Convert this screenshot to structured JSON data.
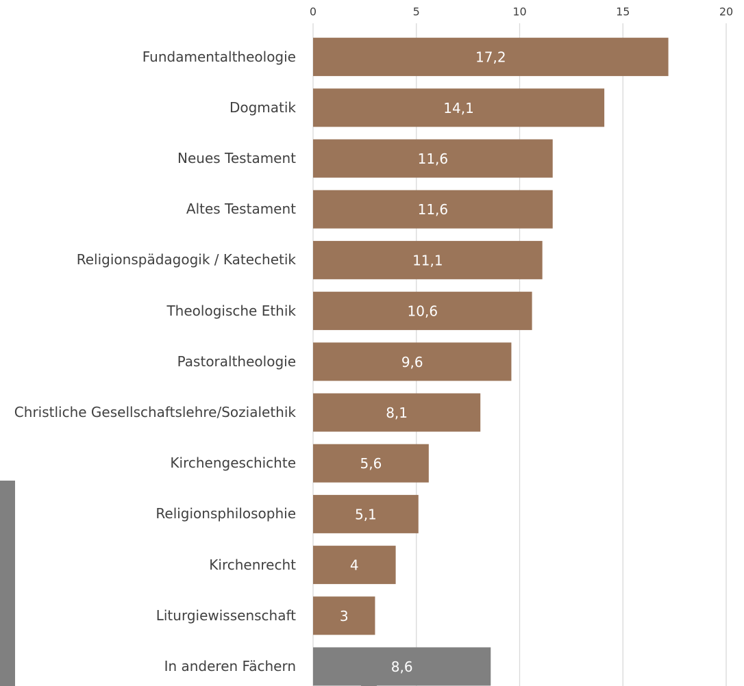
{
  "chart_data": {
    "type": "bar",
    "orientation": "horizontal",
    "categories": [
      "Fundamentaltheologie",
      "Dogmatik",
      "Neues Testament",
      "Altes Testament",
      "Religionspädagogik / Katechetik",
      "Theologische Ethik",
      "Pastoraltheologie",
      "Christliche Gesellschaftslehre/Sozialethik",
      "Kirchengeschichte",
      "Religionsphilosophie",
      "Kirchenrecht",
      "Liturgiewissenschaft",
      "In anderen Fächern"
    ],
    "values": [
      17.2,
      14.1,
      11.6,
      11.6,
      11.1,
      10.6,
      9.6,
      8.1,
      5.6,
      5.1,
      4,
      3,
      8.6
    ],
    "value_labels": [
      "17,2",
      "14,1",
      "11,6",
      "11,6",
      "11,1",
      "10,6",
      "9,6",
      "8,1",
      "5,6",
      "5,1",
      "4",
      "3",
      "8,6"
    ],
    "colors": [
      "#9b7559",
      "#9b7559",
      "#9b7559",
      "#9b7559",
      "#9b7559",
      "#9b7559",
      "#9b7559",
      "#9b7559",
      "#9b7559",
      "#9b7559",
      "#9b7559",
      "#9b7559",
      "#808080"
    ],
    "xlim": [
      0,
      20
    ],
    "xticks": [
      0,
      5,
      10,
      15,
      20
    ],
    "grid": true
  }
}
